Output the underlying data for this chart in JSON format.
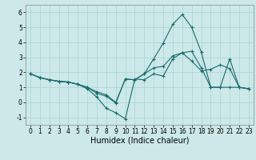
{
  "xlabel": "Humidex (Indice chaleur)",
  "xlim": [
    -0.5,
    23.5
  ],
  "ylim": [
    -1.5,
    6.5
  ],
  "xticks": [
    0,
    1,
    2,
    3,
    4,
    5,
    6,
    7,
    8,
    9,
    10,
    11,
    12,
    13,
    14,
    15,
    16,
    17,
    18,
    19,
    20,
    21,
    22,
    23
  ],
  "yticks": [
    -1,
    0,
    1,
    2,
    3,
    4,
    5,
    6
  ],
  "bg_color": "#cce8e8",
  "line_color": "#1a6b6b",
  "grid_color": "#aad4d4",
  "series": [
    [
      1.9,
      1.65,
      1.5,
      1.4,
      1.35,
      1.2,
      1.0,
      0.6,
      0.4,
      -0.05,
      1.55,
      1.5,
      1.9,
      2.9,
      3.95,
      5.2,
      5.85,
      5.0,
      3.35,
      1.0,
      1.0,
      2.9,
      1.0,
      0.9
    ],
    [
      1.9,
      1.65,
      1.5,
      1.4,
      1.35,
      1.2,
      0.9,
      0.35,
      -0.4,
      -0.7,
      -1.1,
      1.55,
      1.5,
      1.9,
      1.75,
      2.9,
      3.3,
      2.75,
      2.1,
      2.2,
      2.5,
      2.25,
      1.0,
      0.9
    ],
    [
      1.9,
      1.65,
      1.5,
      1.4,
      1.35,
      1.2,
      1.0,
      0.7,
      0.5,
      0.0,
      1.55,
      1.5,
      1.9,
      2.3,
      2.4,
      3.1,
      3.3,
      3.4,
      2.3,
      1.0,
      1.0,
      1.0,
      1.0,
      0.9
    ]
  ],
  "xlabel_fontsize": 7,
  "tick_fontsize": 5.5
}
